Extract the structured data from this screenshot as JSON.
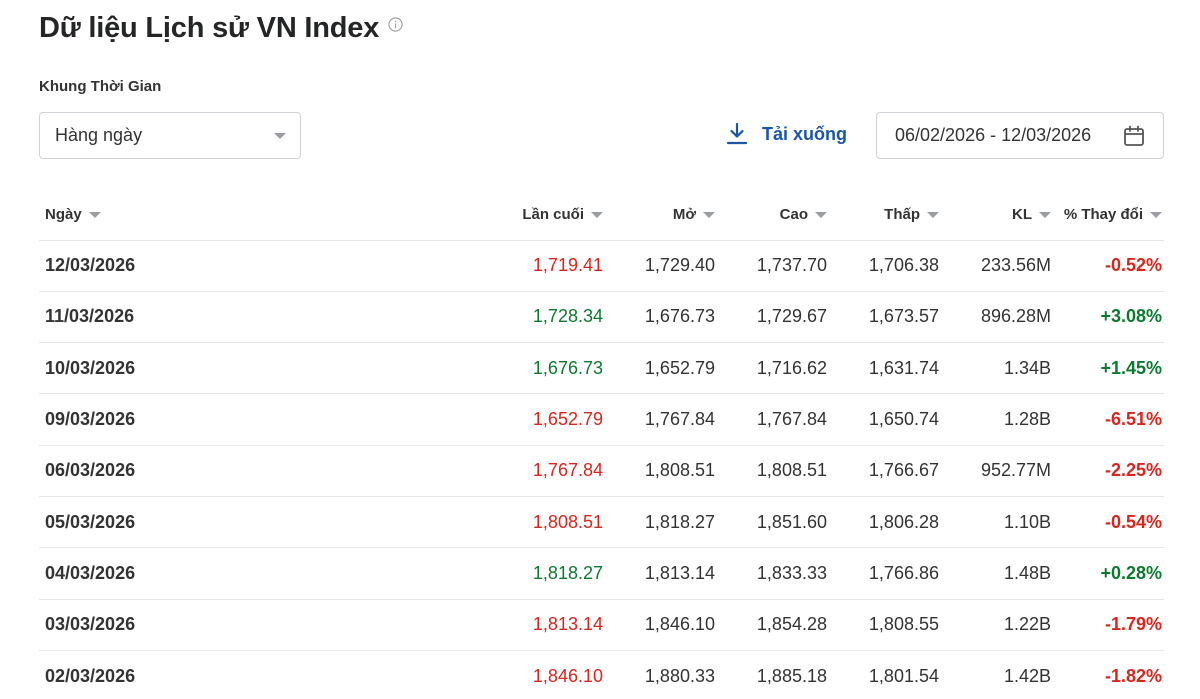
{
  "page": {
    "title": "Dữ liệu Lịch sử VN Index",
    "period_label": "Khung Thời Gian",
    "period_value": "Hàng ngày",
    "download_label": "Tải xuống",
    "date_range": "06/02/2026 - 12/03/2026"
  },
  "colors": {
    "up": "#0c7a2e",
    "down": "#d9251d",
    "link": "#1a56a8"
  },
  "table": {
    "headers": {
      "date": "Ngày",
      "last": "Lần cuối",
      "open": "Mở",
      "high": "Cao",
      "low": "Thấp",
      "volume": "KL",
      "change": "% Thay đổi"
    },
    "rows": [
      {
        "date": "12/03/2026",
        "last": "1,719.41",
        "open": "1,729.40",
        "high": "1,737.70",
        "low": "1,706.38",
        "volume": "233.56M",
        "change": "-0.52%",
        "dir": "down"
      },
      {
        "date": "11/03/2026",
        "last": "1,728.34",
        "open": "1,676.73",
        "high": "1,729.67",
        "low": "1,673.57",
        "volume": "896.28M",
        "change": "+3.08%",
        "dir": "up"
      },
      {
        "date": "10/03/2026",
        "last": "1,676.73",
        "open": "1,652.79",
        "high": "1,716.62",
        "low": "1,631.74",
        "volume": "1.34B",
        "change": "+1.45%",
        "dir": "up"
      },
      {
        "date": "09/03/2026",
        "last": "1,652.79",
        "open": "1,767.84",
        "high": "1,767.84",
        "low": "1,650.74",
        "volume": "1.28B",
        "change": "-6.51%",
        "dir": "down"
      },
      {
        "date": "06/03/2026",
        "last": "1,767.84",
        "open": "1,808.51",
        "high": "1,808.51",
        "low": "1,766.67",
        "volume": "952.77M",
        "change": "-2.25%",
        "dir": "down"
      },
      {
        "date": "05/03/2026",
        "last": "1,808.51",
        "open": "1,818.27",
        "high": "1,851.60",
        "low": "1,806.28",
        "volume": "1.10B",
        "change": "-0.54%",
        "dir": "down"
      },
      {
        "date": "04/03/2026",
        "last": "1,818.27",
        "open": "1,813.14",
        "high": "1,833.33",
        "low": "1,766.86",
        "volume": "1.48B",
        "change": "+0.28%",
        "dir": "up"
      },
      {
        "date": "03/03/2026",
        "last": "1,813.14",
        "open": "1,846.10",
        "high": "1,854.28",
        "low": "1,808.55",
        "volume": "1.22B",
        "change": "-1.79%",
        "dir": "down"
      },
      {
        "date": "02/03/2026",
        "last": "1,846.10",
        "open": "1,880.33",
        "high": "1,885.18",
        "low": "1,801.54",
        "volume": "1.42B",
        "change": "-1.82%",
        "dir": "down"
      }
    ]
  }
}
